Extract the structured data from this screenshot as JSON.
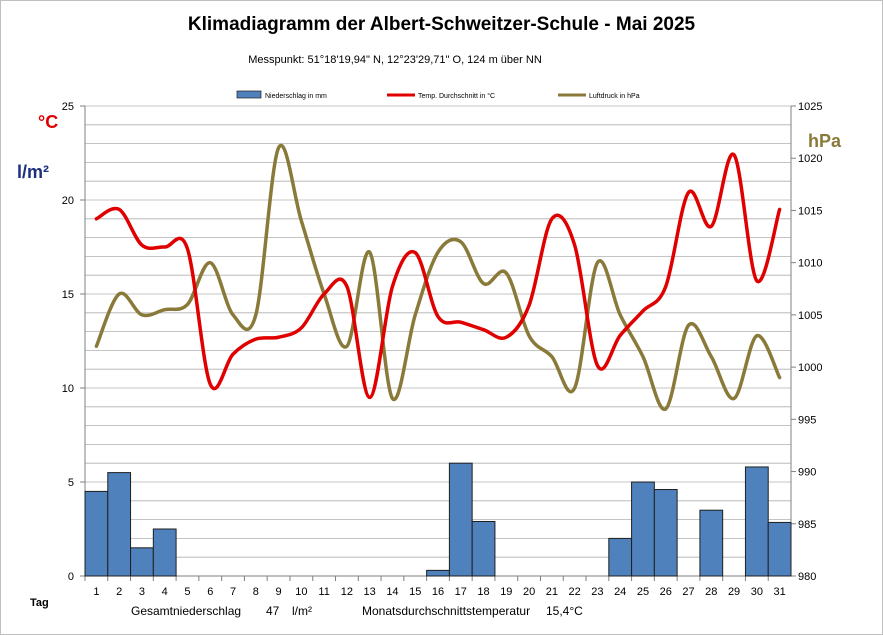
{
  "chart_data": {
    "type": "bar-line-combo",
    "title": "Klimadiagramm der Albert-Schweitzer-Schule    -   Mai 2025",
    "subtitle": "Messpunkt:  51°18'19,94\" N,  12°23'29,71\" O,  124 m über NN",
    "left_axis": {
      "unit_temp": "°C",
      "unit_precip": "l/m²",
      "ylim": [
        0,
        25
      ],
      "ticks": [
        0,
        5,
        10,
        15,
        20,
        25
      ]
    },
    "right_axis": {
      "unit": "hPa",
      "ylim": [
        980,
        1025
      ],
      "ticks": [
        980,
        985,
        990,
        995,
        1000,
        1005,
        1010,
        1015,
        1020,
        1025
      ]
    },
    "x_label": "Tag",
    "days": [
      1,
      2,
      3,
      4,
      5,
      6,
      7,
      8,
      9,
      10,
      11,
      12,
      13,
      14,
      15,
      16,
      17,
      18,
      19,
      20,
      21,
      22,
      23,
      24,
      25,
      26,
      27,
      28,
      29,
      30,
      31
    ],
    "legend": [
      "Niederschlag in mm",
      "Temp. Durchschnitt in °C",
      "Luftdruck in hPa"
    ],
    "grid": true,
    "legend_position": "top",
    "series": [
      {
        "name": "Niederschlag in mm",
        "kind": "bar",
        "color": "#4f81bd",
        "values": [
          4.5,
          5.5,
          1.5,
          2.5,
          0,
          0,
          0,
          0,
          0,
          0,
          0,
          0,
          0,
          0,
          0,
          0.3,
          6.0,
          2.9,
          0,
          0,
          0,
          0,
          0,
          2.0,
          5.0,
          4.6,
          0,
          3.5,
          0,
          5.8,
          2.85
        ]
      },
      {
        "name": "Temp. Durchschnitt in °C",
        "kind": "line",
        "color": "#e00000",
        "values": [
          19.0,
          19.5,
          17.6,
          17.5,
          17.4,
          10.2,
          11.8,
          12.6,
          12.7,
          13.2,
          15.0,
          15.4,
          9.5,
          15.4,
          17.2,
          13.8,
          13.5,
          13.1,
          12.7,
          14.4,
          19.0,
          17.6,
          11.2,
          12.8,
          14.1,
          15.4,
          20.4,
          18.6,
          22.4,
          15.7,
          19.5
        ]
      },
      {
        "name": "Luftdruck in hPa",
        "kind": "line",
        "color": "#8a7a3a",
        "axis": "right",
        "values": [
          1002,
          1007,
          1005,
          1005.5,
          1006,
          1010,
          1005,
          1005,
          1021,
          1014,
          1007,
          1002,
          1011,
          997,
          1005,
          1011,
          1012,
          1008,
          1009,
          1003,
          1001,
          998,
          1010,
          1005,
          1001,
          996,
          1004,
          1001,
          997,
          1003,
          999
        ]
      }
    ]
  },
  "labels": {
    "unit_temp": "°C",
    "unit_precip": "l/m²",
    "unit_pressure": "hPa",
    "day": "Tag"
  },
  "footer": {
    "total_precip_label": "Gesamtniederschlag",
    "total_precip_value": "47",
    "total_precip_unit": "l/m²",
    "avg_temp_label": "Monatsdurchschnittstemperatur",
    "avg_temp_value": "15,4°C"
  }
}
